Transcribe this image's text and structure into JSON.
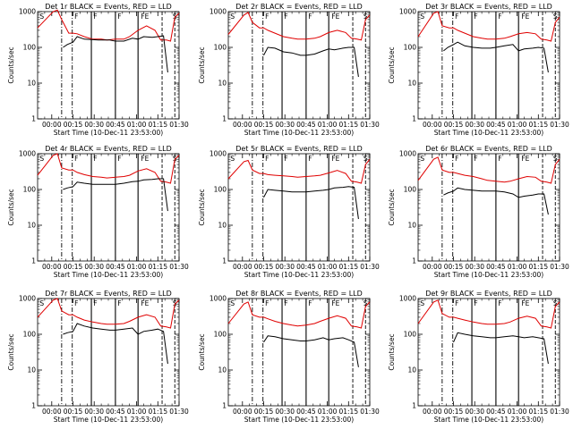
{
  "figure": {
    "ylabel": "Counts/sec",
    "xlabel": "Start Time (10-Dec-11 23:53:00)"
  },
  "chart_data": {
    "type": "line",
    "xlabel": "Start Time (10-Dec-11 23:53:00)",
    "ylabel": "Counts/sec",
    "y_scale": "log",
    "ylim": [
      1,
      1000
    ],
    "y_ticks": [
      "1",
      "10",
      "100",
      "1000"
    ],
    "xlim_minutes_from_start": [
      -3,
      97
    ],
    "x_ticks": [
      {
        "label": "00:00",
        "min": 7
      },
      {
        "label": "00:15",
        "min": 22
      },
      {
        "label": "00:30",
        "min": 37
      },
      {
        "label": "00:45",
        "min": 52
      },
      {
        "label": "01:00",
        "min": 67
      },
      {
        "label": "01:15",
        "min": 82
      },
      {
        "label": "01:30",
        "min": 97
      }
    ],
    "legend": {
      "black": "Events",
      "red": "LLD"
    },
    "flag_labels": [
      "S",
      "F",
      "F",
      "F",
      "FE",
      "S"
    ],
    "panels": [
      {
        "title": "Det 1r BLACK = Events, RED = LLD",
        "red": {
          "min": [
            -3,
            8,
            11,
            14,
            19,
            22,
            25,
            30,
            36,
            42,
            46,
            52,
            58,
            62,
            68,
            74,
            80,
            84,
            88,
            91,
            94,
            97
          ],
          "values": [
            350,
            1000,
            1100,
            600,
            250,
            250,
            240,
            200,
            170,
            170,
            160,
            170,
            170,
            200,
            300,
            400,
            300,
            160,
            160,
            150,
            700,
            900
          ]
        },
        "black": {
          "min": [
            15,
            18,
            22,
            25,
            30,
            40,
            48,
            52,
            58,
            64,
            68,
            72,
            78,
            82,
            86,
            89
          ],
          "values": [
            100,
            120,
            140,
            200,
            170,
            160,
            160,
            150,
            150,
            180,
            170,
            200,
            190,
            200,
            210,
            20
          ]
        }
      },
      {
        "title": "Det 2r BLACK = Events, RED = LLD",
        "red": {
          "min": [
            -3,
            8,
            11,
            14,
            19,
            22,
            25,
            30,
            36,
            42,
            46,
            52,
            58,
            62,
            68,
            74,
            80,
            84,
            88,
            91,
            94,
            97
          ],
          "values": [
            230,
            800,
            950,
            500,
            350,
            350,
            300,
            250,
            200,
            180,
            170,
            170,
            180,
            200,
            260,
            300,
            260,
            180,
            170,
            160,
            600,
            800
          ]
        },
        "black": {
          "min": [
            22,
            25,
            30,
            36,
            42,
            48,
            52,
            58,
            64,
            68,
            72,
            78,
            82,
            86,
            89
          ],
          "values": [
            60,
            100,
            95,
            75,
            70,
            60,
            60,
            65,
            80,
            90,
            85,
            95,
            100,
            100,
            15
          ]
        }
      },
      {
        "title": "Det 3r BLACK = Events, RED = LLD",
        "red": {
          "min": [
            -3,
            8,
            11,
            14,
            19,
            22,
            25,
            30,
            36,
            42,
            46,
            52,
            58,
            62,
            68,
            74,
            80,
            84,
            88,
            91,
            94,
            97
          ],
          "values": [
            200,
            900,
            1000,
            400,
            350,
            350,
            300,
            250,
            200,
            180,
            170,
            170,
            180,
            200,
            240,
            260,
            240,
            170,
            160,
            150,
            500,
            700
          ]
        },
        "black": {
          "min": [
            15,
            18,
            22,
            25,
            30,
            36,
            42,
            48,
            52,
            58,
            64,
            68,
            72,
            78,
            82,
            86,
            89
          ],
          "values": [
            80,
            100,
            120,
            140,
            110,
            100,
            95,
            95,
            100,
            110,
            120,
            80,
            90,
            95,
            100,
            95,
            20
          ]
        }
      },
      {
        "title": "Det 4r BLACK = Events, RED = LLD",
        "red": {
          "min": [
            -3,
            8,
            11,
            14,
            19,
            22,
            25,
            30,
            36,
            42,
            46,
            52,
            58,
            62,
            68,
            74,
            80,
            84,
            88,
            91,
            94,
            97
          ],
          "values": [
            250,
            900,
            1000,
            400,
            350,
            350,
            300,
            260,
            230,
            220,
            210,
            220,
            230,
            250,
            330,
            380,
            300,
            170,
            160,
            150,
            700,
            900
          ]
        },
        "black": {
          "min": [
            15,
            18,
            22,
            25,
            30,
            36,
            42,
            48,
            52,
            58,
            64,
            68,
            72,
            78,
            82,
            86,
            89
          ],
          "values": [
            100,
            110,
            120,
            160,
            150,
            140,
            140,
            140,
            140,
            150,
            165,
            170,
            185,
            190,
            200,
            200,
            25
          ]
        }
      },
      {
        "title": "Det 5r BLACK = Events, RED = LLD",
        "red": {
          "min": [
            -3,
            8,
            11,
            14,
            19,
            22,
            25,
            30,
            36,
            42,
            46,
            52,
            58,
            62,
            68,
            74,
            80,
            84,
            88,
            91,
            94,
            97
          ],
          "values": [
            200,
            600,
            650,
            350,
            280,
            280,
            260,
            250,
            240,
            230,
            220,
            230,
            240,
            250,
            290,
            340,
            280,
            170,
            160,
            150,
            500,
            700
          ]
        },
        "black": {
          "min": [
            22,
            25,
            30,
            36,
            42,
            48,
            52,
            58,
            64,
            68,
            72,
            78,
            82,
            86,
            89
          ],
          "values": [
            60,
            100,
            95,
            90,
            85,
            85,
            85,
            90,
            95,
            100,
            110,
            115,
            120,
            115,
            15
          ]
        }
      },
      {
        "title": "Det 6r BLACK = Events, RED = LLD",
        "red": {
          "min": [
            -3,
            8,
            11,
            14,
            19,
            22,
            25,
            30,
            36,
            42,
            46,
            52,
            58,
            62,
            68,
            74,
            80,
            84,
            88,
            91,
            94,
            97
          ],
          "values": [
            180,
            700,
            800,
            350,
            300,
            300,
            280,
            250,
            230,
            200,
            180,
            170,
            160,
            170,
            200,
            230,
            220,
            170,
            160,
            150,
            500,
            700
          ]
        },
        "black": {
          "min": [
            15,
            18,
            22,
            25,
            30,
            36,
            42,
            48,
            52,
            58,
            64,
            68,
            72,
            78,
            82,
            86,
            89
          ],
          "values": [
            70,
            80,
            90,
            110,
            100,
            95,
            90,
            90,
            90,
            85,
            75,
            60,
            65,
            70,
            75,
            75,
            20
          ]
        }
      },
      {
        "title": "Det 7r BLACK = Events, RED = LLD",
        "red": {
          "min": [
            -3,
            8,
            11,
            14,
            19,
            22,
            25,
            30,
            36,
            42,
            46,
            52,
            58,
            62,
            68,
            74,
            80,
            84,
            88,
            91,
            94,
            97
          ],
          "values": [
            300,
            900,
            1000,
            450,
            350,
            350,
            300,
            250,
            220,
            200,
            190,
            190,
            200,
            230,
            300,
            350,
            300,
            170,
            160,
            150,
            700,
            900
          ]
        },
        "black": {
          "min": [
            15,
            18,
            22,
            25,
            30,
            36,
            42,
            48,
            52,
            58,
            64,
            68,
            72,
            78,
            82,
            86,
            89
          ],
          "values": [
            100,
            110,
            120,
            200,
            170,
            150,
            140,
            130,
            130,
            140,
            150,
            100,
            120,
            130,
            140,
            120,
            15
          ]
        }
      },
      {
        "title": "Det 8r BLACK = Events, RED = LLD",
        "red": {
          "min": [
            -3,
            8,
            11,
            14,
            19,
            22,
            25,
            30,
            36,
            42,
            46,
            52,
            58,
            62,
            68,
            74,
            80,
            84,
            88,
            91,
            94,
            97
          ],
          "values": [
            200,
            700,
            800,
            350,
            300,
            300,
            270,
            230,
            200,
            180,
            170,
            180,
            200,
            230,
            280,
            330,
            280,
            170,
            160,
            150,
            600,
            800
          ]
        },
        "black": {
          "min": [
            22,
            25,
            30,
            36,
            42,
            48,
            52,
            58,
            64,
            68,
            72,
            78,
            82,
            86,
            89
          ],
          "values": [
            60,
            90,
            85,
            75,
            70,
            65,
            65,
            70,
            80,
            70,
            75,
            80,
            70,
            60,
            12
          ]
        }
      },
      {
        "title": "Det 9r BLACK = Events, RED = LLD",
        "red": {
          "min": [
            -3,
            8,
            11,
            14,
            19,
            22,
            25,
            30,
            36,
            42,
            46,
            52,
            58,
            62,
            68,
            74,
            80,
            84,
            88,
            91,
            94,
            97
          ],
          "values": [
            200,
            800,
            900,
            380,
            300,
            300,
            280,
            250,
            220,
            200,
            190,
            190,
            200,
            220,
            280,
            320,
            280,
            170,
            160,
            150,
            600,
            800
          ]
        },
        "black": {
          "min": [
            22,
            25,
            30,
            36,
            42,
            48,
            52,
            58,
            64,
            68,
            72,
            78,
            82,
            86,
            89
          ],
          "values": [
            60,
            110,
            100,
            90,
            85,
            80,
            80,
            85,
            90,
            85,
            80,
            85,
            80,
            75,
            15
          ]
        }
      }
    ],
    "marker_lines": {
      "dashdot_min": [
        14,
        21.5
      ],
      "solid_min": [
        35,
        52,
        68
      ],
      "dashed_min": [
        85,
        94
      ]
    },
    "colors": {
      "events": "#000000",
      "lld": "#e00000"
    }
  }
}
